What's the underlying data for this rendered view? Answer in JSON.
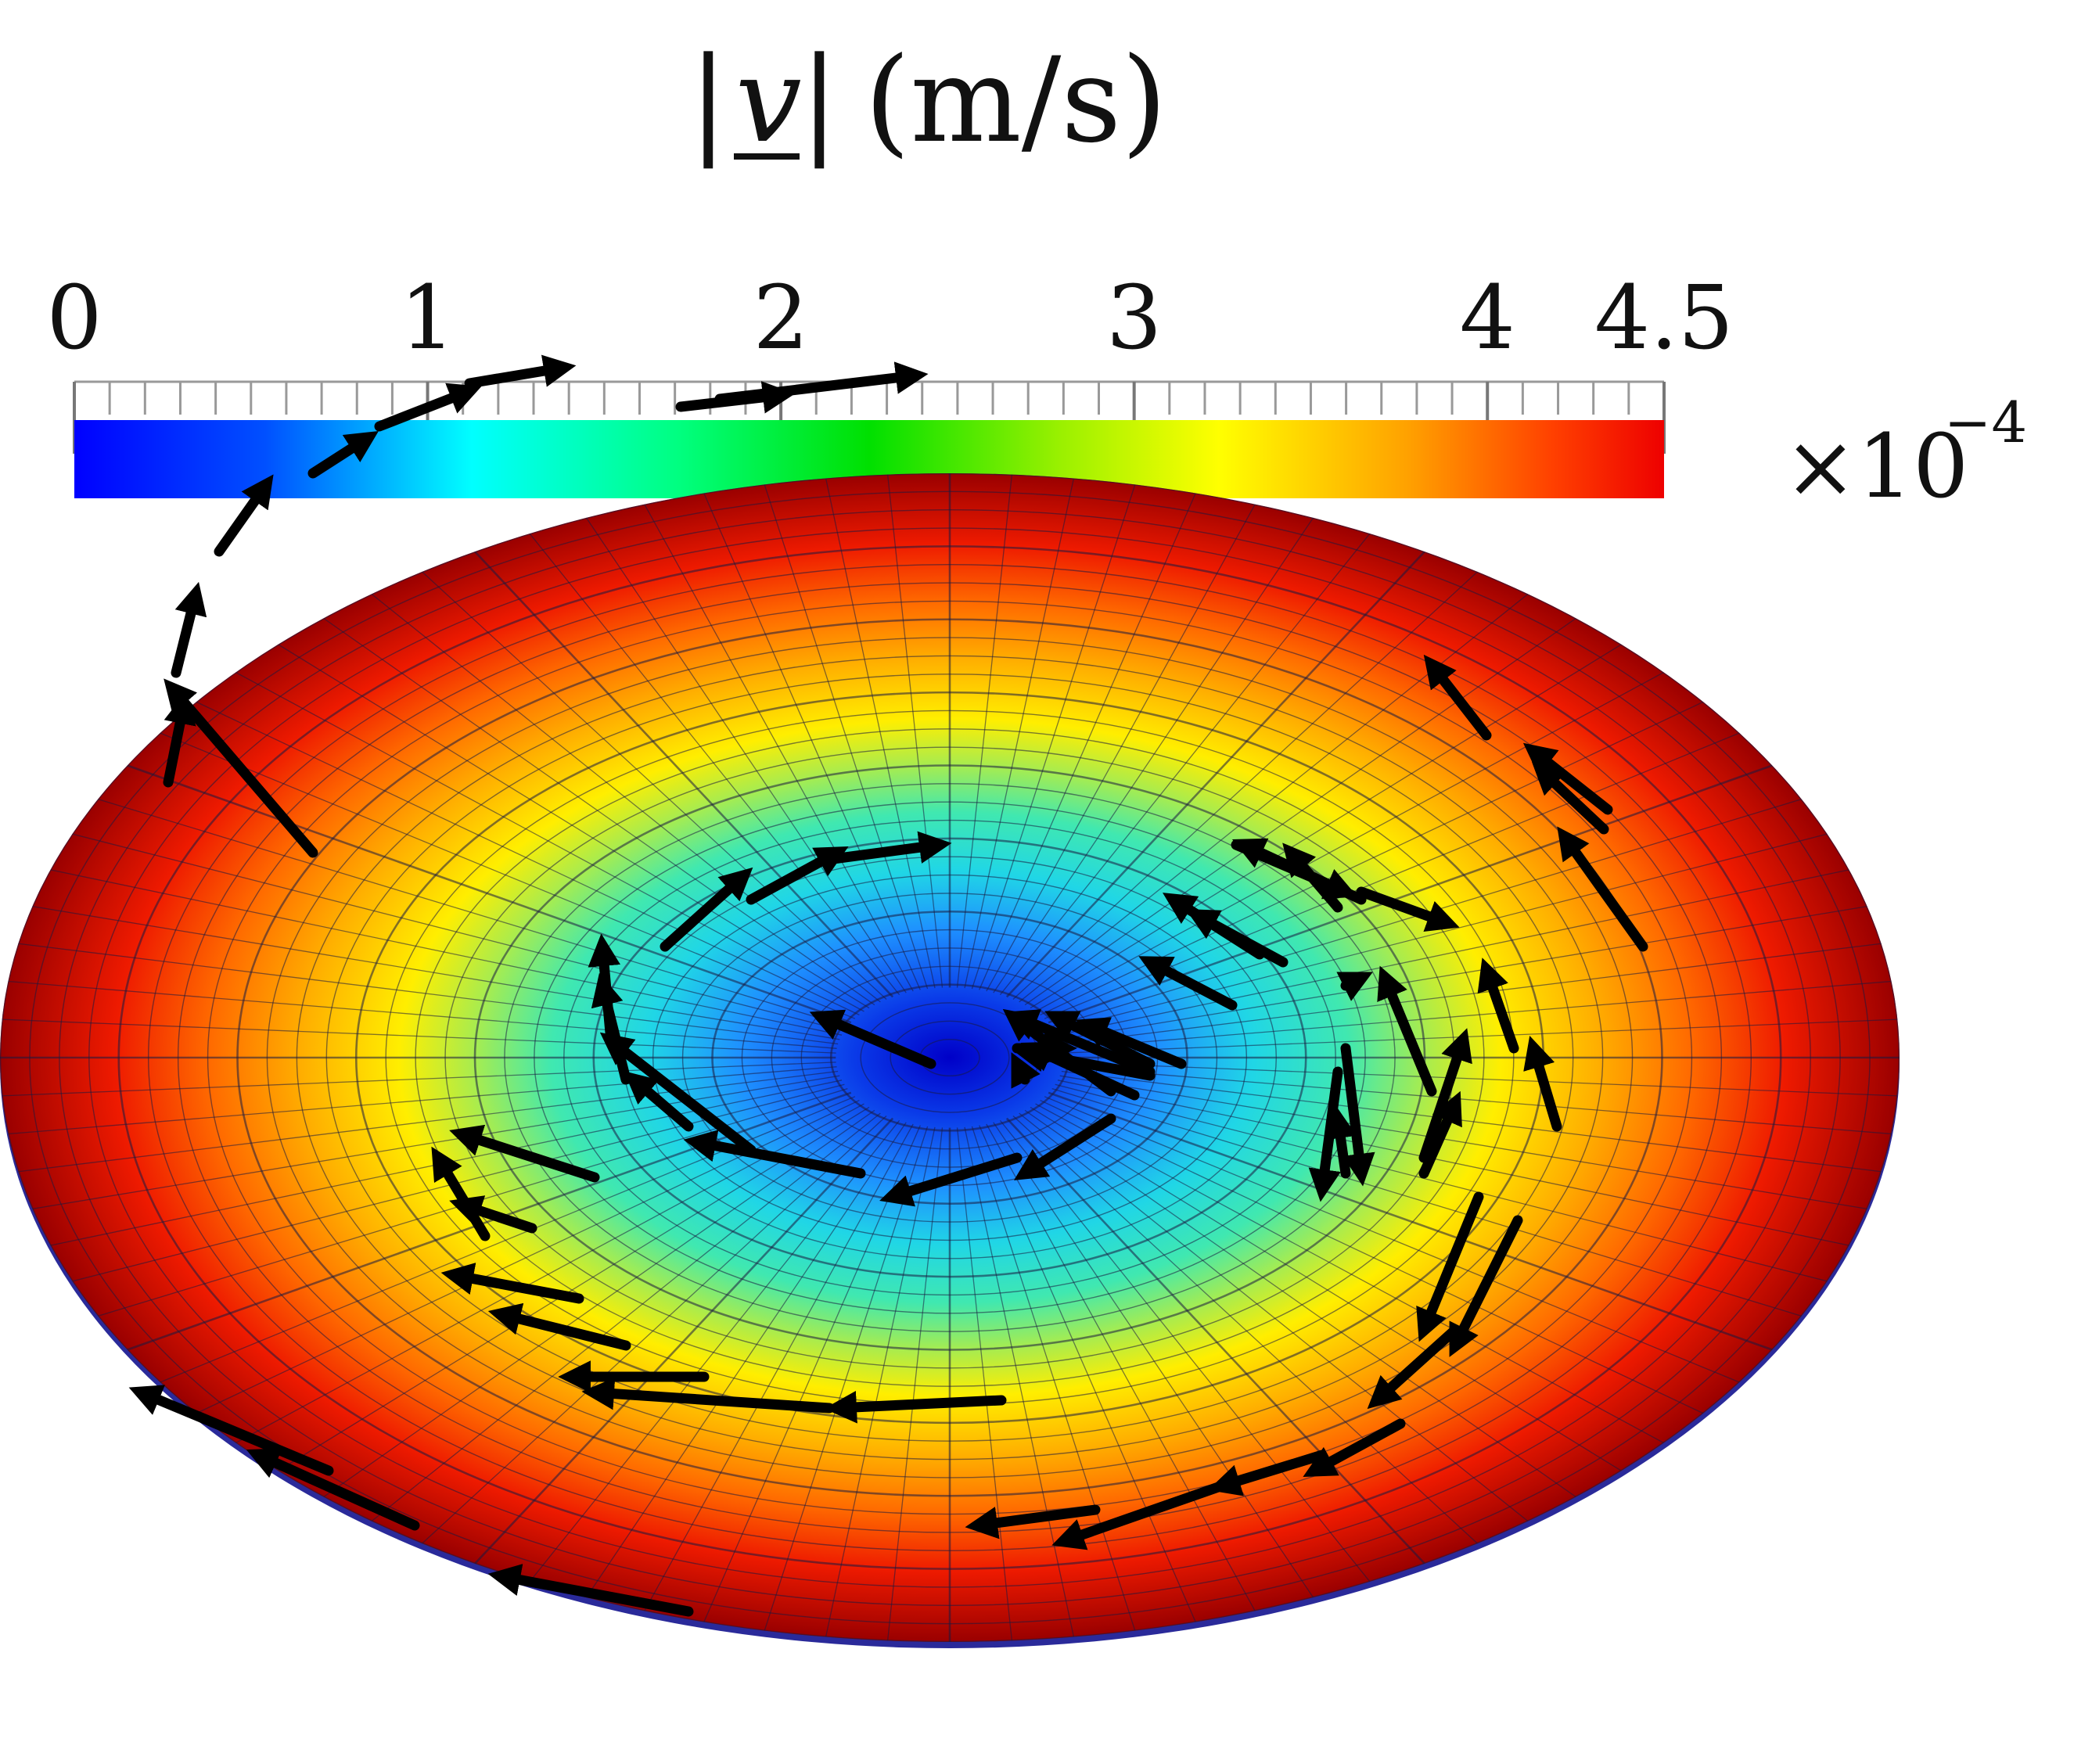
{
  "legend": {
    "title": "|v| (m/s)",
    "title_parts": {
      "bar_left": "|",
      "symbol": "v",
      "bar_right": "|",
      "unit": "(m/s)"
    },
    "range": [
      0,
      4.5
    ],
    "tick_labels": [
      "0",
      "1",
      "2",
      "3",
      "4",
      "4.5"
    ],
    "tick_values": [
      0,
      1,
      2,
      3,
      4,
      4.5
    ],
    "multiplier_base": "×10",
    "multiplier_exponent": "−4",
    "colormap_stops": [
      "#0000ff",
      "#00a0ff",
      "#00ffff",
      "#00ff80",
      "#00e000",
      "#9af000",
      "#ffff00",
      "#ffa500",
      "#ff4000",
      "#e00000"
    ]
  },
  "disk": {
    "field_description_colors": {
      "center": "#0a10e0",
      "edge": "#a00000",
      "mesh_line": "#1a1a40"
    },
    "arrow_color": "#000000"
  }
}
